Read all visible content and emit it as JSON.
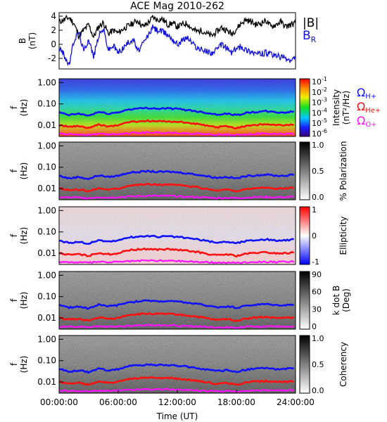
{
  "title": "ACE Mag 2010-262",
  "xaxis": {
    "label": "Time (UT)",
    "ticks": [
      "00:00:00",
      "06:00:00",
      "12:00:00",
      "18:00:00",
      "24:00:00"
    ]
  },
  "legend": {
    "B_total": "|B|",
    "B_R": "B",
    "B_R_sub": "R",
    "omega": "Ω",
    "omega_H_sub": "H+",
    "omega_He_sub": "He+",
    "omega_O_sub": "O+"
  },
  "panels": {
    "b_field": {
      "ylabel": "B",
      "yunit": "(nT)",
      "ticks": [
        "4",
        "2",
        "0",
        "-2"
      ]
    },
    "spectro": {
      "ylabel": "f",
      "yunit": "(Hz)",
      "ticks": [
        "1.00",
        "0.10",
        "0.01"
      ]
    },
    "intensity": {
      "cbar_label": "Intensity",
      "cbar_unit": "(nT²/Hz)",
      "cbar_ticks_base": [
        "10",
        "10",
        "10",
        "10",
        "10",
        "10"
      ],
      "cbar_ticks_exp": [
        "-1",
        "-2",
        "-3",
        "-4",
        "-5",
        "-6"
      ]
    },
    "polarization": {
      "cbar_label": "% Polarization",
      "cbar_ticks": [
        "1.0",
        "0.5",
        "0.0"
      ]
    },
    "ellipticity": {
      "cbar_label": "Ellipticity",
      "cbar_ticks": [
        "1",
        "0",
        "-1"
      ]
    },
    "kdotb": {
      "cbar_label": "k dot B",
      "cbar_unit": "(Deg)",
      "cbar_ticks": [
        "90",
        "60",
        "30",
        "0"
      ]
    },
    "coherency": {
      "cbar_label": "Coherency",
      "cbar_ticks": [
        "1.0",
        "0.5",
        "0.0"
      ]
    }
  },
  "colors": {
    "B_total": "#000000",
    "B_R": "#1010e0",
    "H_line": "#1010ff",
    "He_line": "#ff1010",
    "O_line": "#ff10ff"
  },
  "chart_data": {
    "type": "line",
    "x_range_hours": [
      0,
      24
    ],
    "b_field": {
      "ylim": [
        -3.5,
        4.5
      ],
      "x": [
        0,
        0.5,
        1,
        1.5,
        2,
        2.5,
        3,
        3.5,
        4,
        4.5,
        5,
        5.5,
        6,
        6.5,
        7,
        7.5,
        8,
        8.5,
        9,
        9.5,
        10,
        10.5,
        11,
        11.5,
        12,
        12.5,
        13,
        13.5,
        14,
        14.5,
        15,
        15.5,
        16,
        16.5,
        17,
        17.5,
        18,
        18.5,
        19,
        19.5,
        20,
        20.5,
        21,
        21.5,
        22,
        22.5,
        23,
        23.5,
        24
      ],
      "series": [
        {
          "name": "|B|",
          "values": [
            3.2,
            3.5,
            3.8,
            3.0,
            1.2,
            2.0,
            2.8,
            1.0,
            2.5,
            3.1,
            1.5,
            2.0,
            1.6,
            2.2,
            2.6,
            3.0,
            3.4,
            2.5,
            3.0,
            3.8,
            3.5,
            3.6,
            2.8,
            3.0,
            2.5,
            2.8,
            3.0,
            2.2,
            1.8,
            2.0,
            1.5,
            1.2,
            1.8,
            2.4,
            2.0,
            1.5,
            2.2,
            3.0,
            3.5,
            3.2,
            2.8,
            3.0,
            3.4,
            2.5,
            2.8,
            3.2,
            2.5,
            2.8,
            3.0
          ]
        },
        {
          "name": "B",
          "values": [
            -0.5,
            -1.5,
            -3.0,
            0.5,
            1.8,
            -1.0,
            0.8,
            -1.8,
            1.2,
            2.2,
            -0.8,
            -0.2,
            -1.2,
            -0.5,
            0.2,
            0.8,
            -1.0,
            0.0,
            1.2,
            2.4,
            2.0,
            1.8,
            1.4,
            0.8,
            0.0,
            0.6,
            1.0,
            0.2,
            -0.5,
            -0.8,
            -1.0,
            -1.2,
            -0.8,
            0.0,
            -0.5,
            -1.2,
            -0.6,
            -0.3,
            -0.8,
            -1.0,
            -1.3,
            -1.4,
            -1.2,
            -1.5,
            -1.6,
            -1.8,
            -2.0,
            -2.4,
            -2.0
          ]
        }
      ]
    },
    "frequency_lines": {
      "ylim_hz": [
        0.003,
        1.5
      ],
      "x": [
        0,
        1,
        2,
        3,
        4,
        5,
        6,
        7,
        8,
        9,
        10,
        11,
        12,
        13,
        14,
        15,
        16,
        17,
        18,
        19,
        20,
        21,
        22,
        23,
        24
      ],
      "series": [
        {
          "name": "H+",
          "values": [
            0.04,
            0.03,
            0.035,
            0.028,
            0.042,
            0.035,
            0.04,
            0.055,
            0.06,
            0.065,
            0.06,
            0.062,
            0.058,
            0.052,
            0.045,
            0.038,
            0.032,
            0.035,
            0.03,
            0.038,
            0.042,
            0.045,
            0.04,
            0.04,
            0.045
          ]
        },
        {
          "name": "He+",
          "values": [
            0.01,
            0.0085,
            0.009,
            0.0075,
            0.0105,
            0.009,
            0.01,
            0.014,
            0.015,
            0.016,
            0.015,
            0.0155,
            0.0145,
            0.013,
            0.0115,
            0.0095,
            0.008,
            0.009,
            0.0075,
            0.0095,
            0.0105,
            0.011,
            0.01,
            0.01,
            0.011
          ]
        },
        {
          "name": "O+",
          "values": [
            0.004,
            0.0038,
            0.0038,
            0.0036,
            0.004,
            0.0038,
            0.004,
            0.0042,
            0.0044,
            0.0046,
            0.0045,
            0.0045,
            0.0044,
            0.0042,
            0.004,
            0.0038,
            0.0036,
            0.0037,
            0.0036,
            0.0038,
            0.004,
            0.004,
            0.0039,
            0.004,
            0.0041
          ]
        }
      ]
    }
  }
}
